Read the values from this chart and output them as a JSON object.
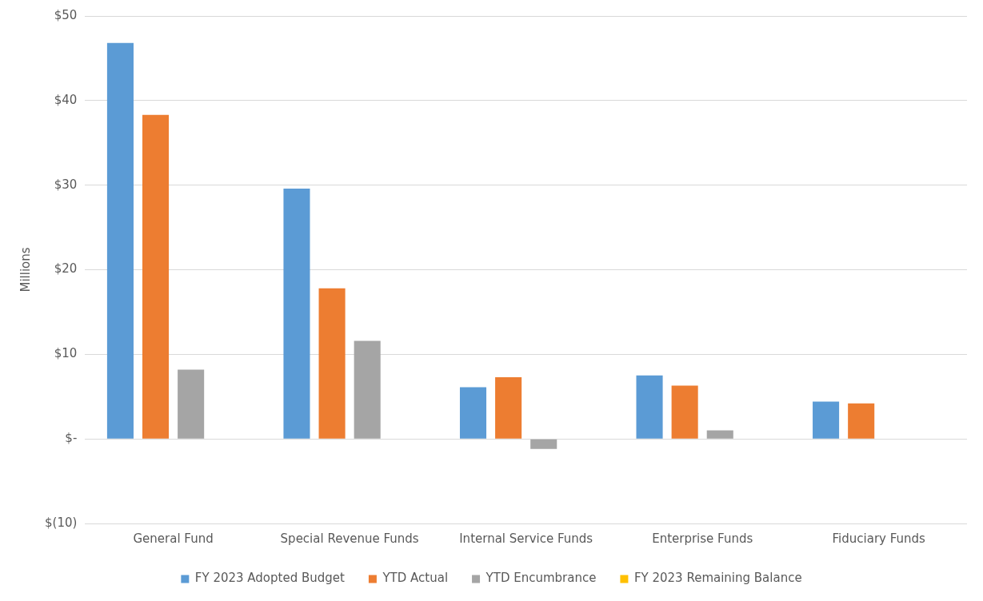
{
  "chart_data": {
    "type": "bar",
    "ylabel": "Millions",
    "categories": [
      "General Fund",
      "Special Revenue Funds",
      "Internal Service Funds",
      "Enterprise Funds",
      "Fiduciary Funds"
    ],
    "series": [
      {
        "name": "FY 2023 Adopted Budget",
        "color": "#5b9bd5",
        "values": [
          46.8,
          29.6,
          6.1,
          7.5,
          4.4
        ]
      },
      {
        "name": "YTD Actual",
        "color": "#ed7d31",
        "values": [
          38.3,
          17.8,
          7.3,
          6.3,
          4.2
        ]
      },
      {
        "name": "YTD Encumbrance",
        "color": "#a5a5a5",
        "values": [
          8.2,
          11.6,
          -1.2,
          1.0,
          null
        ]
      },
      {
        "name": "FY 2023 Remaining Balance",
        "color": "#ffc000",
        "values": [
          null,
          null,
          null,
          null,
          null
        ]
      }
    ],
    "ylim": [
      -10,
      50
    ],
    "yticks": [
      {
        "value": -10,
        "label": "$(10)"
      },
      {
        "value": 0,
        "label": "$-"
      },
      {
        "value": 10,
        "label": "$10"
      },
      {
        "value": 20,
        "label": "$20"
      },
      {
        "value": 30,
        "label": "$30"
      },
      {
        "value": 40,
        "label": "$40"
      },
      {
        "value": 50,
        "label": "$50"
      }
    ],
    "grid": "y",
    "legend": "bottom"
  }
}
